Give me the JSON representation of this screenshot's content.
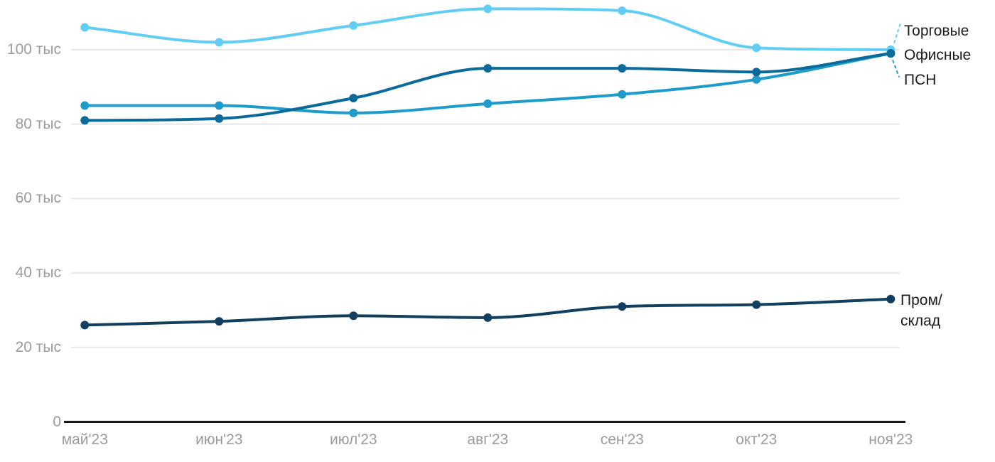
{
  "chart_data": {
    "type": "line",
    "title": "",
    "units": "тыс",
    "categories": [
      "май'23",
      "июн'23",
      "июл'23",
      "авг'23",
      "сен'23",
      "окт'23",
      "ноя'23"
    ],
    "y_axis": {
      "range": [
        0,
        113
      ],
      "ticks": [
        {
          "value": 100,
          "label": "100 тыс"
        },
        {
          "value": 80,
          "label": "80 тыс"
        },
        {
          "value": 60,
          "label": "60 тыс"
        },
        {
          "value": 40,
          "label": "40 тыс"
        },
        {
          "value": 20,
          "label": "20 тыс"
        },
        {
          "value": 0,
          "label": "0"
        }
      ]
    },
    "grid": "horizontal",
    "legend_position": "right-edge-labels",
    "series": [
      {
        "name": "Торговые",
        "color": "#61CDF5",
        "values": [
          106,
          102,
          106.5,
          111,
          110.5,
          100.5,
          100
        ]
      },
      {
        "name": "ПСН",
        "color": "#1D9BCB",
        "values": [
          85,
          85,
          83,
          85.5,
          88,
          92,
          99
        ]
      },
      {
        "name": "Офисные",
        "color": "#0A6A99",
        "values": [
          81,
          81.5,
          87,
          95,
          95,
          94,
          99
        ]
      },
      {
        "name": "Пром/склад",
        "color": "#123F60",
        "values": [
          26,
          27,
          28.5,
          28,
          31,
          31.5,
          33
        ]
      }
    ],
    "colors": {
      "grid": "#E7E7E7",
      "axis": "#1A1A1A",
      "tick_text": "#9B9B9B",
      "label_text": "#1C1C1C"
    }
  }
}
